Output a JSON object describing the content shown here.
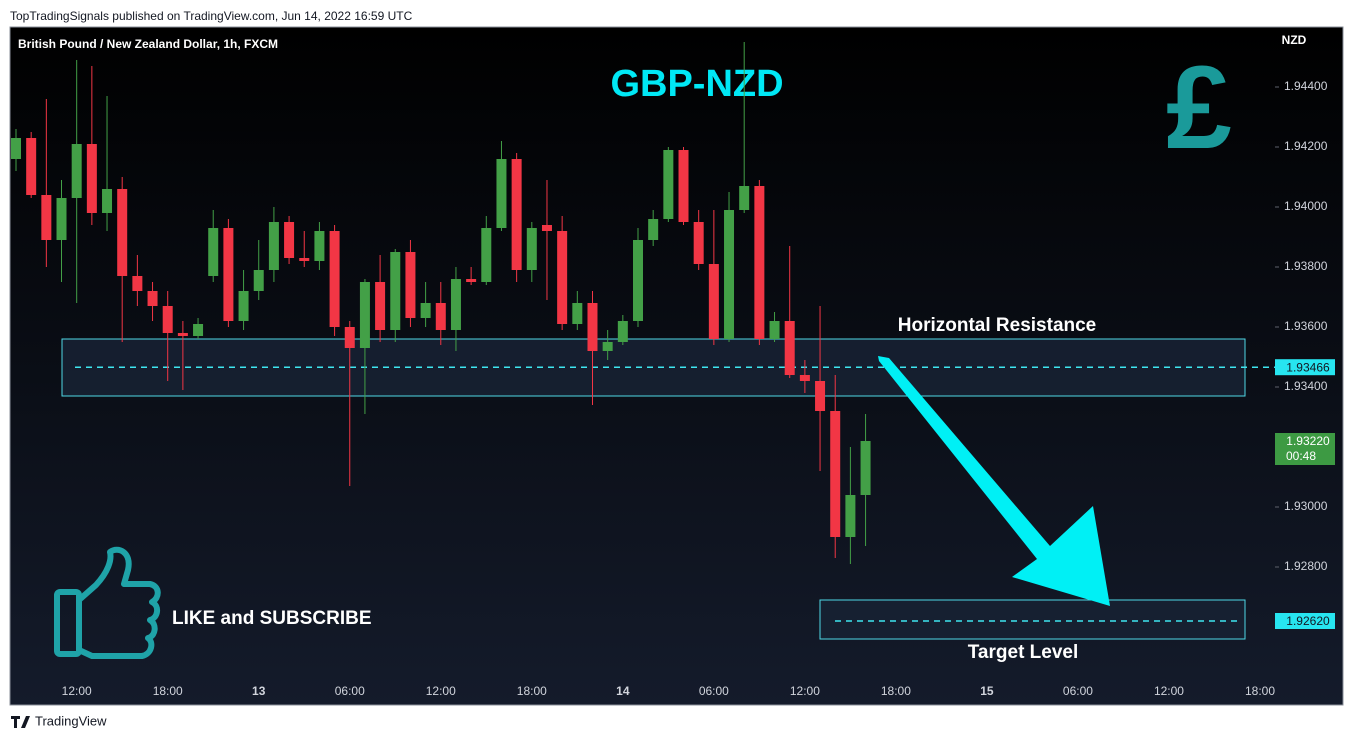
{
  "header": "TopTradingSignals published on TradingView.com, Jun 14, 2022 16:59 UTC",
  "footer": "TradingView",
  "chart_data": {
    "type": "candlestick",
    "title": "GBP-NZD",
    "subtitle": "British Pound / New Zealand Dollar, 1h, FXCM",
    "y_axis_label": "NZD",
    "symbol": "£",
    "call_to_action": "LIKE and SUBSCRIBE",
    "up_color": "#43a047",
    "down_color": "#f23645",
    "categories": [
      null,
      null,
      null,
      null,
      "12:00",
      null,
      null,
      null,
      null,
      null,
      "18:00",
      null,
      null,
      null,
      null,
      null,
      "13",
      null,
      null,
      null,
      null,
      null,
      "06:00",
      null,
      null,
      null,
      null,
      null,
      "12:00",
      null,
      null,
      null,
      null,
      null,
      "18:00",
      null,
      null,
      null,
      null,
      null,
      "14",
      null,
      null,
      null,
      null,
      null,
      "06:00",
      null,
      null,
      null,
      null,
      null,
      "12:00",
      null,
      null,
      null,
      null,
      null,
      "18:00",
      null,
      null,
      null,
      null,
      null,
      "15",
      null,
      null,
      null,
      null,
      null,
      "06:00",
      null,
      null,
      null,
      null,
      null,
      "12:00",
      null,
      null,
      null,
      null,
      null,
      "18:00"
    ],
    "open": [
      1.9416,
      1.9423,
      1.9404,
      1.9389,
      1.9403,
      1.9421,
      1.9398,
      1.9406,
      1.9377,
      1.9372,
      1.9367,
      1.9358,
      1.9357,
      1.9377,
      1.9393,
      1.9362,
      1.9372,
      1.9379,
      1.9395,
      1.9383,
      1.9382,
      1.9392,
      1.936,
      1.9353,
      1.9375,
      1.9359,
      1.9385,
      1.9363,
      1.9368,
      1.9359,
      1.9376,
      1.9375,
      1.9393,
      1.9416,
      1.9379,
      1.9394,
      1.9392,
      1.9361,
      1.9368,
      1.9352,
      1.9355,
      1.9362,
      1.9389,
      1.9396,
      1.9419,
      1.9395,
      1.9381,
      1.9356,
      1.9399,
      1.9407,
      1.9356,
      1.9362,
      1.9344,
      1.9342,
      1.9332,
      1.929,
      1.9304,
      null,
      null,
      null,
      null,
      null,
      null,
      null,
      null,
      null,
      null,
      null,
      null,
      null,
      null,
      null,
      null,
      null,
      null,
      null,
      null,
      null,
      null,
      null,
      null,
      null,
      null
    ],
    "high": [
      1.9426,
      1.9425,
      1.9436,
      1.9409,
      1.9449,
      1.9447,
      1.9437,
      1.941,
      1.9384,
      1.9375,
      1.9372,
      1.9362,
      1.9363,
      1.9399,
      1.9396,
      1.9379,
      1.9389,
      1.94,
      1.9397,
      1.9392,
      1.9395,
      1.9394,
      1.9362,
      1.9376,
      1.9384,
      1.9386,
      1.9389,
      1.9375,
      1.9375,
      1.938,
      1.938,
      1.9397,
      1.9422,
      1.9418,
      1.9395,
      1.9409,
      1.9397,
      1.9372,
      1.9372,
      1.9359,
      1.9364,
      1.9393,
      1.9399,
      1.942,
      1.942,
      1.9399,
      1.9399,
      1.9405,
      1.9455,
      1.9409,
      1.9365,
      1.9387,
      1.9349,
      1.9367,
      1.9344,
      1.932,
      1.9331,
      null,
      null,
      null,
      null,
      null,
      null,
      null,
      null,
      null,
      null,
      null,
      null,
      null,
      null,
      null,
      null,
      null,
      null,
      null,
      null,
      null,
      null,
      null,
      null,
      null,
      null
    ],
    "low": [
      1.9412,
      1.9403,
      1.938,
      1.9375,
      1.9368,
      1.9394,
      1.9392,
      1.9355,
      1.9367,
      1.9362,
      1.9342,
      1.9339,
      1.9356,
      1.9375,
      1.936,
      1.9359,
      1.9369,
      1.9375,
      1.9381,
      1.938,
      1.9379,
      1.9357,
      1.9307,
      1.9331,
      1.9355,
      1.9355,
      1.936,
      1.936,
      1.9354,
      1.9352,
      1.9374,
      1.9374,
      1.9392,
      1.9375,
      1.9375,
      1.9369,
      1.9359,
      1.9359,
      1.9334,
      1.9349,
      1.9354,
      1.936,
      1.9387,
      1.9395,
      1.9394,
      1.9379,
      1.9354,
      1.9355,
      1.9398,
      1.9354,
      1.9355,
      1.9343,
      1.9338,
      1.9312,
      1.9283,
      1.9281,
      1.9287,
      null,
      null,
      null,
      null,
      null,
      null,
      null,
      null,
      null,
      null,
      null,
      null,
      null,
      null,
      null,
      null,
      null,
      null,
      null,
      null,
      null,
      null,
      null,
      null,
      null,
      null
    ],
    "close": [
      1.9423,
      1.9404,
      1.9389,
      1.9403,
      1.9421,
      1.9398,
      1.9406,
      1.9377,
      1.9372,
      1.9367,
      1.9358,
      1.9357,
      1.9361,
      1.9393,
      1.9362,
      1.9372,
      1.9379,
      1.9395,
      1.9383,
      1.9382,
      1.9392,
      1.936,
      1.9353,
      1.9375,
      1.9359,
      1.9385,
      1.9363,
      1.9368,
      1.9359,
      1.9376,
      1.9375,
      1.9393,
      1.9416,
      1.9379,
      1.9393,
      1.9392,
      1.9361,
      1.9368,
      1.9352,
      1.9355,
      1.9362,
      1.9389,
      1.9396,
      1.9419,
      1.9395,
      1.9381,
      1.9356,
      1.9399,
      1.9407,
      1.9356,
      1.9362,
      1.9344,
      1.9342,
      1.9332,
      1.929,
      1.9304,
      1.9322,
      null,
      null,
      null,
      null,
      null,
      null,
      null,
      null,
      null,
      null,
      null,
      null,
      null,
      null,
      null,
      null,
      null,
      null,
      null,
      null,
      null,
      null,
      null,
      null,
      null,
      null
    ],
    "ylim": [
      1.9234,
      1.946
    ],
    "yticks": [
      {
        "value": 1.944,
        "label": "1.94400"
      },
      {
        "value": 1.942,
        "label": "1.94200"
      },
      {
        "value": 1.94,
        "label": "1.94000"
      },
      {
        "value": 1.938,
        "label": "1.93800"
      },
      {
        "value": 1.936,
        "label": "1.93600"
      },
      {
        "value": 1.934,
        "label": "1.93400"
      },
      {
        "value": 1.93,
        "label": "1.93000"
      },
      {
        "value": 1.928,
        "label": "1.92800"
      }
    ],
    "last_price": {
      "value": 1.9322,
      "label": "1.93220"
    },
    "countdown": "00:48",
    "zones": [
      {
        "label": "Horizontal Resistance",
        "level": 1.93466,
        "high": 1.9356,
        "low": 1.9337
      },
      {
        "label": "Target Level",
        "level": {
          "value": 1.9262,
          "label": "1.92620"
        },
        "high": 1.9269,
        "low": 1.9256
      }
    ]
  }
}
